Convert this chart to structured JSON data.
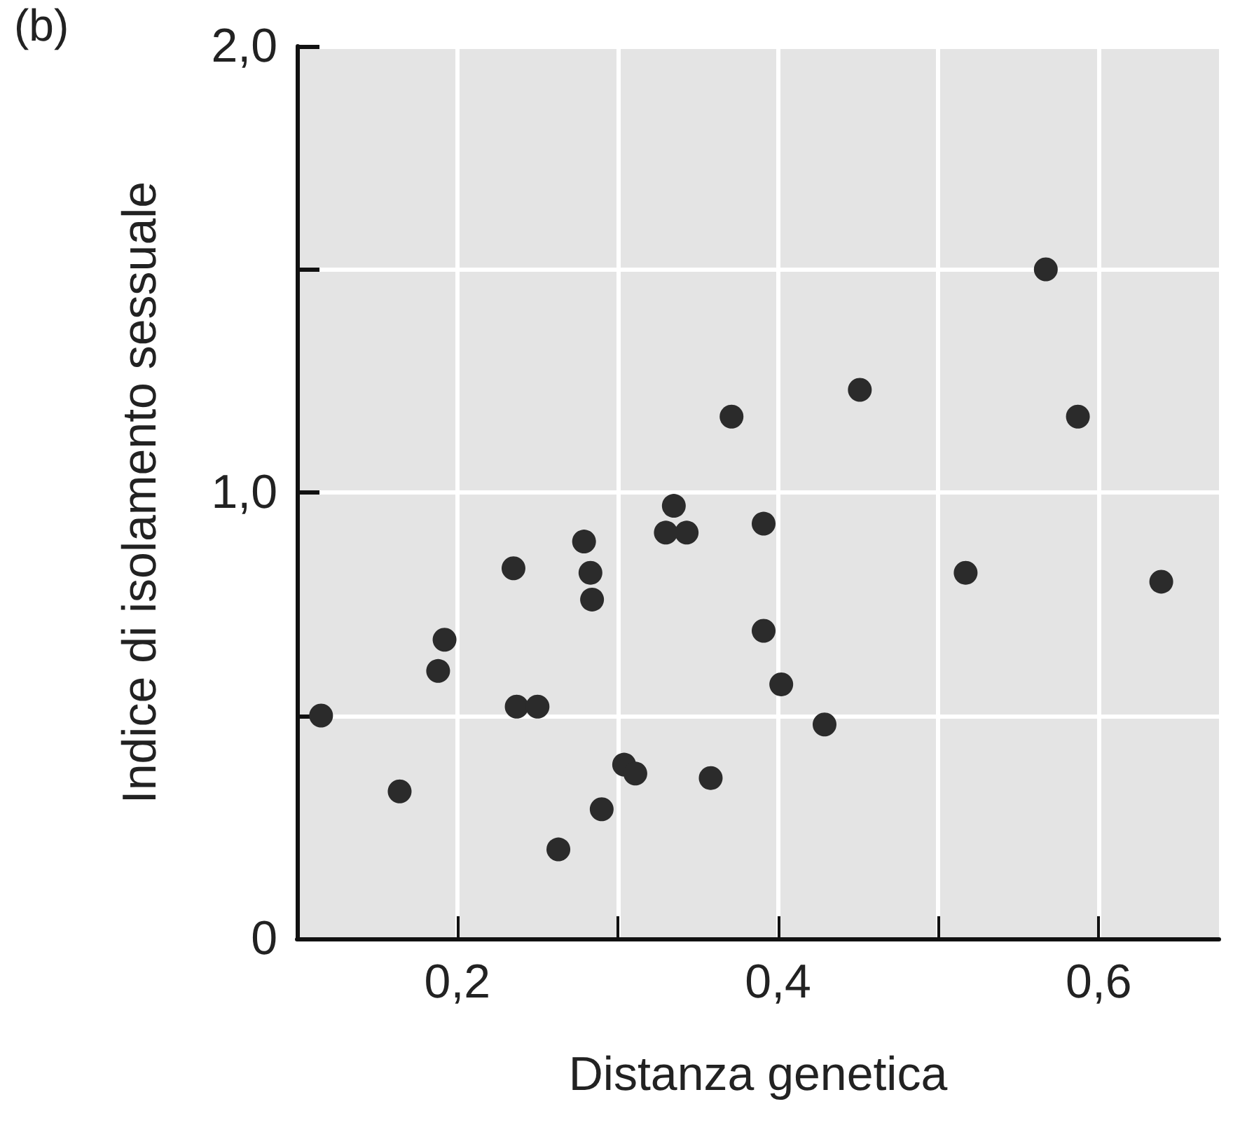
{
  "chart_data": {
    "type": "scatter",
    "xlabel": "Distanza genetica",
    "ylabel": "Indice di isolamento sessuale",
    "annotations": [
      "(b)"
    ],
    "series": [
      {
        "color": "#2b2b2b",
        "x": [
          0.115,
          0.164,
          0.188,
          0.192,
          0.235,
          0.237,
          0.25,
          0.263,
          0.279,
          0.283,
          0.284,
          0.29,
          0.304,
          0.311,
          0.33,
          0.335,
          0.343,
          0.358,
          0.371,
          0.391,
          0.391,
          0.402,
          0.429,
          0.451,
          0.517,
          0.567,
          0.587,
          0.639
        ],
        "values": [
          0.5,
          0.33,
          0.6,
          0.67,
          0.83,
          0.52,
          0.52,
          0.2,
          0.89,
          0.82,
          0.76,
          0.29,
          0.39,
          0.37,
          0.91,
          0.97,
          0.91,
          0.36,
          1.17,
          0.93,
          0.69,
          0.57,
          0.48,
          1.23,
          0.82,
          1.5,
          1.17,
          0.8
        ]
      }
    ],
    "xlim": [
      0.1,
      0.675
    ],
    "xticks": [
      {
        "value": 0.2,
        "label": "0,2"
      },
      {
        "value": 0.3,
        "label": null
      },
      {
        "value": 0.4,
        "label": "0,4"
      },
      {
        "value": 0.5,
        "label": null
      },
      {
        "value": 0.6,
        "label": "0,6"
      }
    ],
    "ylim": [
      0,
      2.0
    ],
    "yticks": [
      {
        "value": 0,
        "label": "0"
      },
      {
        "value": 0.5,
        "label": null
      },
      {
        "value": 1.0,
        "label": "1,0"
      },
      {
        "value": 1.5,
        "label": null
      },
      {
        "value": 2.0,
        "label": "2,0"
      }
    ],
    "grid": true,
    "marker": "circle"
  }
}
